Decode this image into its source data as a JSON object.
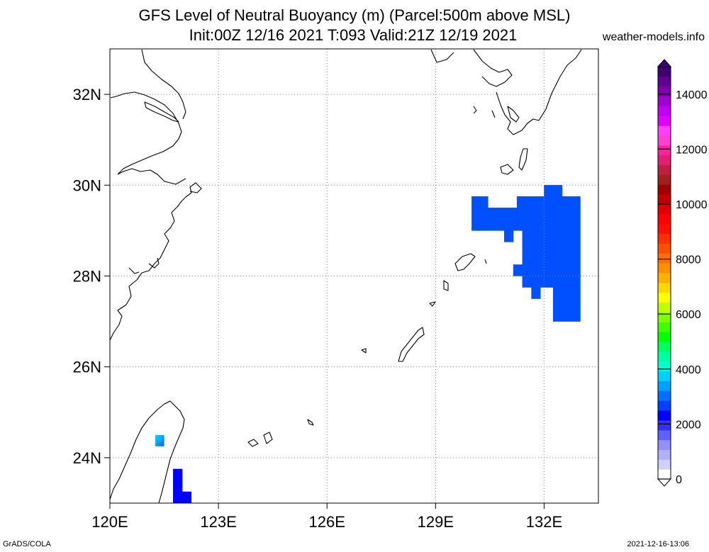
{
  "header": {
    "title_line1": "GFS Level of Neutral Buoyancy (m) (Parcel:500m above MSL)",
    "title_line2": "Init:00Z 12/16 2021 T:093 Valid:21Z 12/19 2021",
    "site": "weather-models.info"
  },
  "footer": {
    "left": "GrADS/COLA",
    "right": "2021-12-16-13:06"
  },
  "map": {
    "lon_range": [
      120,
      133.5
    ],
    "lat_range": [
      23,
      33
    ],
    "lon_ticks": [
      {
        "value": 120,
        "label": "120E"
      },
      {
        "value": 123,
        "label": "123E"
      },
      {
        "value": 126,
        "label": "126E"
      },
      {
        "value": 129,
        "label": "129E"
      },
      {
        "value": 132,
        "label": "132E"
      }
    ],
    "lat_ticks": [
      {
        "value": 24,
        "label": "24N"
      },
      {
        "value": 26,
        "label": "26N"
      },
      {
        "value": 28,
        "label": "28N"
      },
      {
        "value": 30,
        "label": "30N"
      },
      {
        "value": 32,
        "label": "32N"
      }
    ],
    "grid": "dotted"
  },
  "colorbar": {
    "min": 0,
    "max": 15000,
    "labels": [
      "0",
      "2000",
      "4000",
      "6000",
      "8000",
      "10000",
      "12000",
      "14000"
    ],
    "colors": [
      "#ffffff",
      "#d0d0ff",
      "#b0b0ff",
      "#9090ff",
      "#6060ff",
      "#3030ff",
      "#0000ff",
      "#0040ff",
      "#0070ff",
      "#00a0ff",
      "#00d0ff",
      "#00ffd0",
      "#00ffa0",
      "#00ff60",
      "#00ff00",
      "#40ff00",
      "#80ff00",
      "#c0ff00",
      "#ffff00",
      "#ffd800",
      "#ffb000",
      "#ff9000",
      "#ff7000",
      "#ff5000",
      "#ff3000",
      "#ff1000",
      "#ff0000",
      "#e00000",
      "#c00000",
      "#a00000",
      "#a02020",
      "#c02040",
      "#e02070",
      "#ff20a0",
      "#ff40d0",
      "#ff40ff",
      "#e000ff",
      "#c000f0",
      "#a000d0",
      "#8000b0",
      "#600090",
      "#400070"
    ]
  },
  "lnb_field": [
    {
      "lon_min": 130.0,
      "lon_max": 130.45,
      "lat_min": 29.0,
      "lat_max": 29.75,
      "value_m": 2000
    },
    {
      "lon_min": 130.45,
      "lon_max": 131.25,
      "lat_min": 29.0,
      "lat_max": 29.5,
      "value_m": 2000
    },
    {
      "lon_min": 130.9,
      "lon_max": 131.15,
      "lat_min": 28.75,
      "lat_max": 29.0,
      "value_m": 2000
    },
    {
      "lon_min": 131.25,
      "lon_max": 132.0,
      "lat_min": 29.0,
      "lat_max": 29.75,
      "value_m": 2000
    },
    {
      "lon_min": 132.0,
      "lon_max": 132.5,
      "lat_min": 29.0,
      "lat_max": 30.0,
      "value_m": 2000
    },
    {
      "lon_min": 132.5,
      "lon_max": 133.0,
      "lat_min": 29.0,
      "lat_max": 29.75,
      "value_m": 2000
    },
    {
      "lon_min": 131.4,
      "lon_max": 133.0,
      "lat_min": 28.0,
      "lat_max": 29.0,
      "value_m": 2000
    },
    {
      "lon_min": 131.15,
      "lon_max": 131.4,
      "lat_min": 28.0,
      "lat_max": 28.25,
      "value_m": 2000
    },
    {
      "lon_min": 131.4,
      "lon_max": 132.25,
      "lat_min": 27.75,
      "lat_max": 28.0,
      "value_m": 2000
    },
    {
      "lon_min": 131.65,
      "lon_max": 131.9,
      "lat_min": 27.5,
      "lat_max": 27.75,
      "value_m": 2000
    },
    {
      "lon_min": 132.25,
      "lon_max": 133.0,
      "lat_min": 27.0,
      "lat_max": 28.0,
      "value_m": 2000
    },
    {
      "lon_min": 121.75,
      "lon_max": 122.0,
      "lat_min": 23.0,
      "lat_max": 23.75,
      "value_m": 1500
    },
    {
      "lon_min": 122.0,
      "lon_max": 122.25,
      "lat_min": 23.0,
      "lat_max": 23.25,
      "value_m": 1500
    },
    {
      "lon_min": 121.25,
      "lon_max": 121.5,
      "lat_min": 24.25,
      "lat_max": 24.5,
      "value_m": 3200
    }
  ]
}
